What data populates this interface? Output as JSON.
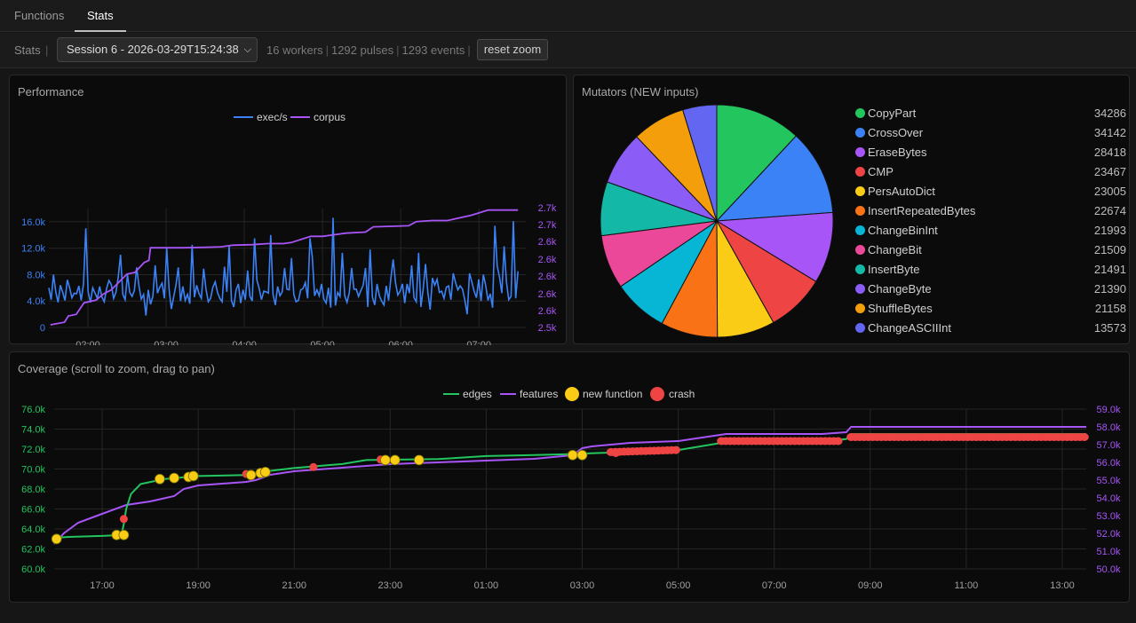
{
  "tabs": [
    {
      "label": "Functions",
      "active": false
    },
    {
      "label": "Stats",
      "active": true
    }
  ],
  "toolbar": {
    "label": "Stats",
    "separator": "|",
    "session": "Session 6 - 2026-03-29T15:24:38",
    "workers": "16 workers",
    "pulses": "1292 pulses",
    "events": "1293 events",
    "reset_label": "reset zoom"
  },
  "performance": {
    "title": "Performance",
    "chart_data": {
      "type": "line",
      "legend": [
        "exec/s",
        "corpus"
      ],
      "colors": {
        "exec": "#3b82f6",
        "corpus": "#a855f7"
      },
      "x_ticks": [
        "02:00",
        "03:00",
        "04:00",
        "05:00",
        "06:00",
        "07:00"
      ],
      "y_left_ticks": [
        "0",
        "4.0k",
        "8.0k",
        "12.0k",
        "16.0k"
      ],
      "y_right_ticks": [
        "2.5k",
        "2.6k",
        "2.6k",
        "2.6k",
        "2.6k",
        "2.6k",
        "2.7k",
        "2.7k"
      ],
      "ylim_left": [
        0,
        18000
      ],
      "x_range": [
        1.5,
        7.6
      ],
      "exec_series": {
        "name": "exec/s",
        "x_start": 1.5,
        "x_end": 7.5,
        "values": [
          6000,
          4200,
          8000,
          5400,
          3800,
          6400,
          5300,
          4100,
          7200,
          6000,
          4500,
          5200,
          5100,
          6300,
          4100,
          6600,
          15000,
          5400,
          3800,
          6000,
          5200,
          4400,
          6200,
          4600,
          3900,
          5900,
          7100,
          6500,
          4400,
          5300,
          7600,
          11000,
          5000,
          4200,
          8000,
          5300,
          4700,
          5600,
          9100,
          6200,
          4300,
          5000,
          1800,
          5700,
          3500,
          4700,
          9400,
          5200,
          6100,
          6700,
          4400,
          12000,
          5900,
          2800,
          4600,
          6400,
          9100,
          4000,
          6200,
          4100,
          5000,
          3600,
          12500,
          4600,
          6400,
          5100,
          4400,
          8900,
          5800,
          3900,
          4400,
          6100,
          6900,
          5300,
          4400,
          3900,
          9200,
          5400,
          12300,
          4100,
          3100,
          5700,
          6600,
          3700,
          5700,
          4200,
          8600,
          4700,
          4000,
          13500,
          7200,
          5900,
          4200,
          5500,
          5400,
          5200,
          14000,
          5000,
          3400,
          6200,
          4800,
          5400,
          9000,
          5800,
          5700,
          10500,
          5000,
          3900,
          4100,
          5700,
          5900,
          6800,
          4400,
          13500,
          10700,
          4800,
          5700,
          4800,
          6600,
          4300,
          3700,
          6000,
          3000,
          16600,
          3300,
          5300,
          4700,
          11300,
          4800,
          3800,
          5300,
          9000,
          5800,
          5800,
          4700,
          5600,
          6400,
          9000,
          3100,
          11800,
          4600,
          3400,
          6600,
          4800,
          4000,
          3400,
          6300,
          4100,
          7500,
          10300,
          6800,
          4900,
          5500,
          6600,
          3700,
          6600,
          5200,
          9400,
          4500,
          3900,
          11300,
          3100,
          5900,
          9600,
          5300,
          2700,
          7500,
          6400,
          7300,
          5300,
          5500,
          4400,
          6100,
          6300,
          4200,
          8200,
          6800,
          5700,
          6300,
          5800,
          4100,
          2000,
          8200,
          6900,
          5500,
          4500,
          7300,
          4000,
          8000,
          6400,
          4100,
          5100,
          3000,
          15400,
          9300,
          7600,
          5200,
          12300,
          6900,
          4200,
          4700,
          16100,
          4400,
          8500
        ]
      },
      "corpus_series": {
        "name": "corpus",
        "min": 2500,
        "max": 2700,
        "values": [
          [
            1.52,
            2503
          ],
          [
            1.7,
            2508
          ],
          [
            1.75,
            2520
          ],
          [
            1.85,
            2523
          ],
          [
            1.95,
            2545
          ],
          [
            2.1,
            2550
          ],
          [
            2.2,
            2562
          ],
          [
            2.3,
            2570
          ],
          [
            2.4,
            2585
          ],
          [
            2.5,
            2600
          ],
          [
            2.6,
            2603
          ],
          [
            2.72,
            2622
          ],
          [
            2.78,
            2626
          ],
          [
            2.8,
            2650
          ],
          [
            3.0,
            2650
          ],
          [
            3.2,
            2650
          ],
          [
            3.5,
            2651
          ],
          [
            3.7,
            2652
          ],
          [
            3.85,
            2655
          ],
          [
            4.1,
            2656
          ],
          [
            4.3,
            2658
          ],
          [
            4.5,
            2658
          ],
          [
            4.6,
            2660
          ],
          [
            4.85,
            2672
          ],
          [
            5.0,
            2672
          ],
          [
            5.3,
            2678
          ],
          [
            5.55,
            2680
          ],
          [
            5.65,
            2690
          ],
          [
            6.1,
            2692
          ],
          [
            6.2,
            2700
          ],
          [
            6.4,
            2702
          ],
          [
            6.6,
            2702
          ],
          [
            6.9,
            2712
          ],
          [
            7.12,
            2722
          ],
          [
            7.5,
            2722
          ]
        ]
      }
    }
  },
  "mutators": {
    "title": "Mutators (NEW inputs)",
    "chart_data": {
      "type": "pie",
      "labels": [
        "CopyPart",
        "CrossOver",
        "EraseBytes",
        "CMP",
        "PersAutoDict",
        "InsertRepeatedBytes",
        "ChangeBinInt",
        "ChangeBit",
        "InsertByte",
        "ChangeByte",
        "ShuffleBytes",
        "ChangeASCIIInt"
      ],
      "values": [
        34286,
        34142,
        28418,
        23467,
        23005,
        22674,
        21993,
        21509,
        21491,
        21390,
        21158,
        13573
      ],
      "colors": [
        "#22c55e",
        "#3b82f6",
        "#a855f7",
        "#ef4444",
        "#facc15",
        "#f97316",
        "#06b6d4",
        "#ec4899",
        "#14b8a6",
        "#8b5cf6",
        "#f59e0b",
        "#6366f1"
      ]
    }
  },
  "coverage": {
    "title": "Coverage (scroll to zoom, drag to pan)",
    "chart_data": {
      "type": "line",
      "legend": [
        "edges",
        "features",
        "new function",
        "crash"
      ],
      "colors": {
        "edges": "#22c55e",
        "features": "#a855f7",
        "new_function": "#facc15",
        "crash": "#ef4444"
      },
      "x_ticks": [
        "17:00",
        "19:00",
        "21:00",
        "23:00",
        "01:00",
        "03:00",
        "05:00",
        "07:00",
        "09:00",
        "11:00",
        "13:00"
      ],
      "y_left_ticks": [
        "60.0k",
        "62.0k",
        "64.0k",
        "66.0k",
        "68.0k",
        "70.0k",
        "72.0k",
        "74.0k",
        "76.0k"
      ],
      "y_right_ticks": [
        "50.0k",
        "51.0k",
        "52.0k",
        "53.0k",
        "54.0k",
        "55.0k",
        "56.0k",
        "57.0k",
        "58.0k",
        "59.0k"
      ],
      "ylim_left": [
        60000,
        76000
      ],
      "ylim_right": [
        50000,
        59000
      ],
      "x_range_hours": [
        16,
        37.5
      ],
      "edges_series": {
        "name": "edges",
        "values": [
          [
            16.0,
            63100
          ],
          [
            16.3,
            63200
          ],
          [
            17.0,
            63300
          ],
          [
            17.4,
            63400
          ],
          [
            17.45,
            64500
          ],
          [
            17.5,
            66000
          ],
          [
            17.6,
            67500
          ],
          [
            17.8,
            68500
          ],
          [
            18.3,
            69000
          ],
          [
            19.0,
            69300
          ],
          [
            20.0,
            69400
          ],
          [
            20.3,
            69700
          ],
          [
            21.0,
            70100
          ],
          [
            22.0,
            70500
          ],
          [
            22.5,
            70900
          ],
          [
            24.0,
            71000
          ],
          [
            25.0,
            71300
          ],
          [
            26.0,
            71400
          ],
          [
            26.8,
            71500
          ],
          [
            27.3,
            71600
          ],
          [
            28.0,
            71700
          ],
          [
            29.0,
            71900
          ],
          [
            30.0,
            72700
          ],
          [
            31.0,
            72800
          ],
          [
            32.0,
            72800
          ],
          [
            32.5,
            73000
          ],
          [
            32.6,
            73500
          ],
          [
            37.5,
            73500
          ]
        ]
      },
      "features_series": {
        "name": "features",
        "values": [
          [
            16.0,
            51400
          ],
          [
            16.2,
            52000
          ],
          [
            16.5,
            52600
          ],
          [
            17.0,
            53100
          ],
          [
            17.5,
            53600
          ],
          [
            18.0,
            53800
          ],
          [
            18.5,
            54100
          ],
          [
            18.7,
            54500
          ],
          [
            19.0,
            54700
          ],
          [
            20.0,
            54900
          ],
          [
            20.2,
            55000
          ],
          [
            20.5,
            55300
          ],
          [
            21.0,
            55500
          ],
          [
            22.0,
            55700
          ],
          [
            23.0,
            55900
          ],
          [
            24.0,
            56000
          ],
          [
            25.0,
            56100
          ],
          [
            26.0,
            56200
          ],
          [
            26.8,
            56400
          ],
          [
            27.0,
            56800
          ],
          [
            27.2,
            56900
          ],
          [
            28.0,
            57100
          ],
          [
            29.0,
            57200
          ],
          [
            30.0,
            57600
          ],
          [
            31.0,
            57600
          ],
          [
            32.0,
            57600
          ],
          [
            32.5,
            57700
          ],
          [
            32.6,
            58000
          ],
          [
            37.5,
            58000
          ]
        ]
      },
      "new_function_points": [
        [
          16.05,
          63000
        ],
        [
          17.3,
          63400
        ],
        [
          17.45,
          63400
        ],
        [
          18.2,
          69000
        ],
        [
          18.5,
          69100
        ],
        [
          18.8,
          69200
        ],
        [
          18.9,
          69300
        ],
        [
          20.1,
          69400
        ],
        [
          20.3,
          69600
        ],
        [
          20.4,
          69700
        ],
        [
          22.9,
          70900
        ],
        [
          23.1,
          70900
        ],
        [
          23.6,
          70900
        ],
        [
          26.8,
          71400
        ],
        [
          27.0,
          71400
        ]
      ],
      "crash_points": [
        [
          17.45,
          65000
        ],
        [
          20.0,
          69500
        ],
        [
          21.4,
          70200
        ],
        [
          22.8,
          70950
        ],
        [
          27.7,
          71600
        ]
      ]
    }
  }
}
